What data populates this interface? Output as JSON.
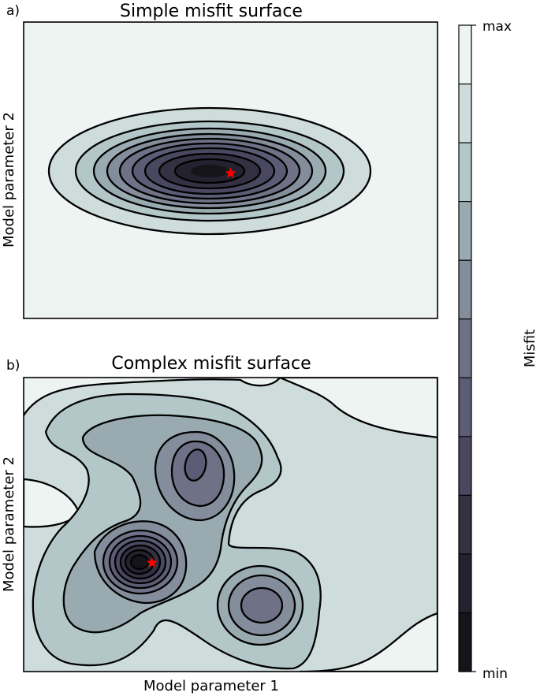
{
  "chart_data": [
    {
      "type": "contour",
      "panel_label": "a)",
      "title": "Simple misfit surface",
      "xlabel": "",
      "ylabel": "Model parameter 2",
      "xlim": [
        0,
        1
      ],
      "ylim": [
        0,
        1
      ],
      "levels": 10,
      "minimum": {
        "x": 0.5,
        "y": 0.49,
        "marker": "star",
        "color": "#ff0000"
      }
    },
    {
      "type": "contour",
      "panel_label": "b)",
      "title": "Complex misfit surface",
      "xlabel": "Model parameter 1",
      "ylabel": "Model parameter 2",
      "xlim": [
        0,
        1
      ],
      "ylim": [
        0,
        1
      ],
      "levels": 10,
      "minimum": {
        "x": 0.31,
        "y": 0.37,
        "marker": "star",
        "color": "#ff0000"
      }
    }
  ],
  "colorbar": {
    "label": "Misfit",
    "tick_max": "max",
    "tick_min": "min",
    "colors": [
      "#141419",
      "#24222e",
      "#343143",
      "#4a4860",
      "#5d5c76",
      "#6f7187",
      "#848d9b",
      "#99aab1",
      "#b3c7c8",
      "#cfdcdc",
      "#eef4f2"
    ]
  },
  "colors": {
    "contour_line": "#000000",
    "marker": "#ff0000"
  }
}
